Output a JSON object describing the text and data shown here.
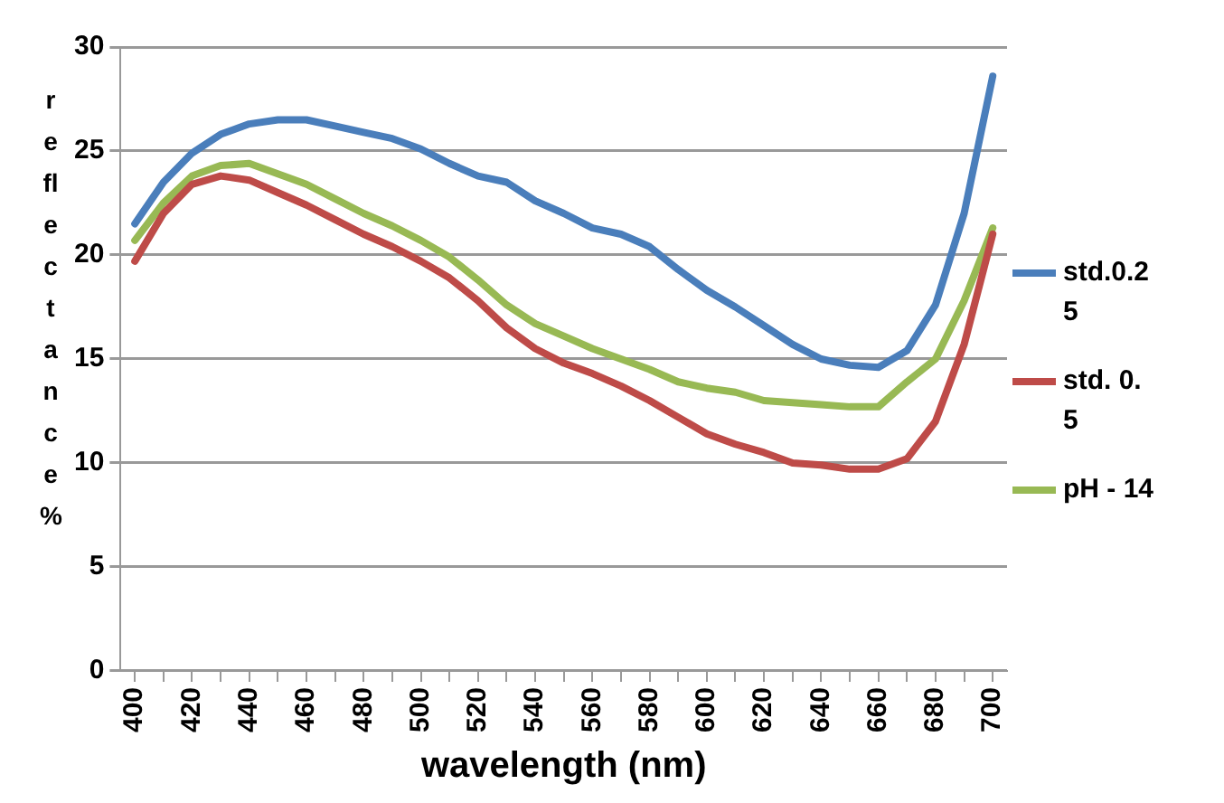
{
  "chart_data": {
    "type": "line",
    "xlabel": "wavelength (nm)",
    "ylabel": "reflectance %",
    "categories": [
      "400",
      null,
      "420",
      null,
      "440",
      null,
      "460",
      null,
      "480",
      null,
      "500",
      null,
      "520",
      null,
      "540",
      null,
      "560",
      null,
      "580",
      null,
      "600",
      null,
      "620",
      null,
      "640",
      null,
      "660",
      null,
      "680",
      null,
      "700"
    ],
    "series": [
      {
        "name": "std.0.25",
        "color": "#4a7ebb",
        "values": [
          21.5,
          23.5,
          24.9,
          25.8,
          26.3,
          26.5,
          26.5,
          26.2,
          25.9,
          25.6,
          25.1,
          24.4,
          23.8,
          23.5,
          22.6,
          22.0,
          21.3,
          21.0,
          20.4,
          19.3,
          18.3,
          17.5,
          16.6,
          15.7,
          15.0,
          14.7,
          14.6,
          15.4,
          17.6,
          22.0,
          28.6
        ]
      },
      {
        "name": "std. 0.5",
        "color": "#be4b48",
        "values": [
          19.7,
          22.0,
          23.4,
          23.8,
          23.6,
          23.0,
          22.4,
          21.7,
          21.0,
          20.4,
          19.7,
          18.9,
          17.8,
          16.5,
          15.5,
          14.8,
          14.3,
          13.7,
          13.0,
          12.2,
          11.4,
          10.9,
          10.5,
          10.0,
          9.9,
          9.7,
          9.7,
          10.2,
          12.0,
          15.7,
          21.0
        ]
      },
      {
        "name": "pH - 14",
        "color": "#98b954",
        "values": [
          20.7,
          22.5,
          23.8,
          24.3,
          24.4,
          23.9,
          23.4,
          22.7,
          22.0,
          21.4,
          20.7,
          19.9,
          18.8,
          17.6,
          16.7,
          16.1,
          15.5,
          15.0,
          14.5,
          13.9,
          13.6,
          13.4,
          13.0,
          12.9,
          12.8,
          12.7,
          12.7,
          13.9,
          15.0,
          17.8,
          21.3
        ]
      }
    ],
    "ylim": [
      0,
      30
    ],
    "yticks": [
      0,
      5,
      10,
      15,
      20,
      25,
      30
    ],
    "grid": "y",
    "legend": "right",
    "marker": "none",
    "line_style": "solid"
  }
}
